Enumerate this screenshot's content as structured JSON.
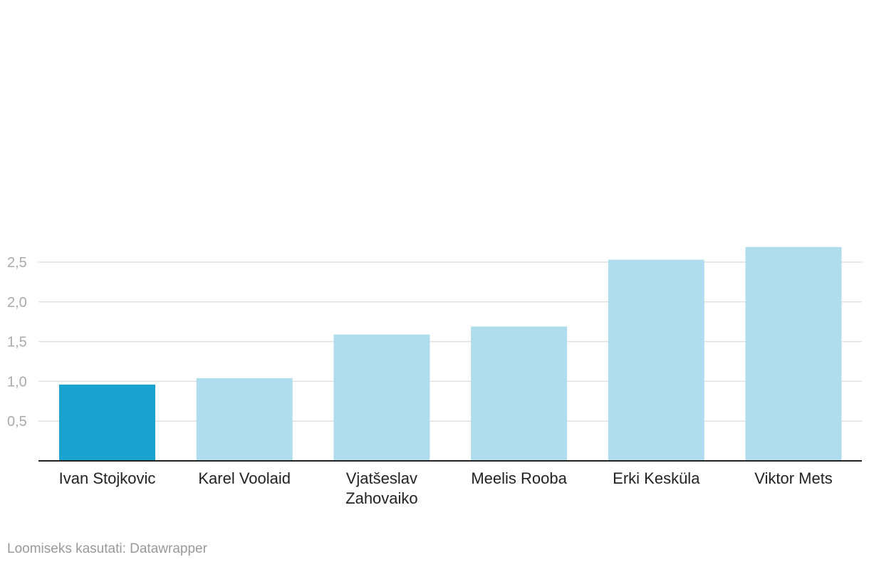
{
  "chart_data": {
    "type": "bar",
    "categories": [
      "Ivan Stojkovic",
      "Karel Voolaid",
      "Vjatšeslav Zahovaiko",
      "Meelis Rooba",
      "Erki Kesküla",
      "Viktor Mets"
    ],
    "category_lines": [
      [
        "Ivan Stojkovic"
      ],
      [
        "Karel Voolaid"
      ],
      [
        "Vjatšeslav",
        "Zahovaiko"
      ],
      [
        "Meelis Rooba"
      ],
      [
        "Erki Kesküla"
      ],
      [
        "Viktor Mets"
      ]
    ],
    "values": [
      0.96,
      1.04,
      1.59,
      1.69,
      2.53,
      2.69
    ],
    "highlight_index": 0,
    "ylim": [
      0,
      2.8
    ],
    "yticks": [
      0.5,
      1.0,
      1.5,
      2.0,
      2.5
    ],
    "ytick_labels": [
      "0,5",
      "1,0",
      "1,5",
      "2,0",
      "2,5"
    ],
    "grid": true,
    "title": "",
    "xlabel": "",
    "ylabel": ""
  },
  "colors": {
    "highlight": "#1ba3d0",
    "bar": "#afdded",
    "grid": "#e0e0e0",
    "baseline": "#222222"
  },
  "footer": {
    "credit": "Loomiseks kasutati: Datawrapper"
  }
}
